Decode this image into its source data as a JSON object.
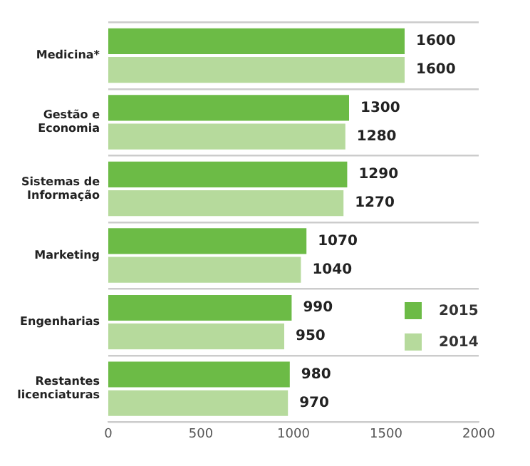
{
  "chart_data": {
    "type": "bar",
    "orientation": "horizontal",
    "categories": [
      "Medicina*",
      "Gestão e Economia",
      "Sistemas de Informação",
      "Marketing",
      "Engenharias",
      "Restantes licenciaturas"
    ],
    "series": [
      {
        "name": "2015",
        "color": "#6cbb46",
        "values": [
          1600,
          1300,
          1290,
          1070,
          990,
          980
        ]
      },
      {
        "name": "2014",
        "color": "#b6da9c",
        "values": [
          1600,
          1280,
          1270,
          1040,
          950,
          970
        ]
      }
    ],
    "xlim": [
      0,
      2000
    ],
    "xticks": [
      0,
      500,
      1000,
      1500,
      2000
    ],
    "data_labels": true,
    "grid": "y",
    "legend": "right"
  }
}
